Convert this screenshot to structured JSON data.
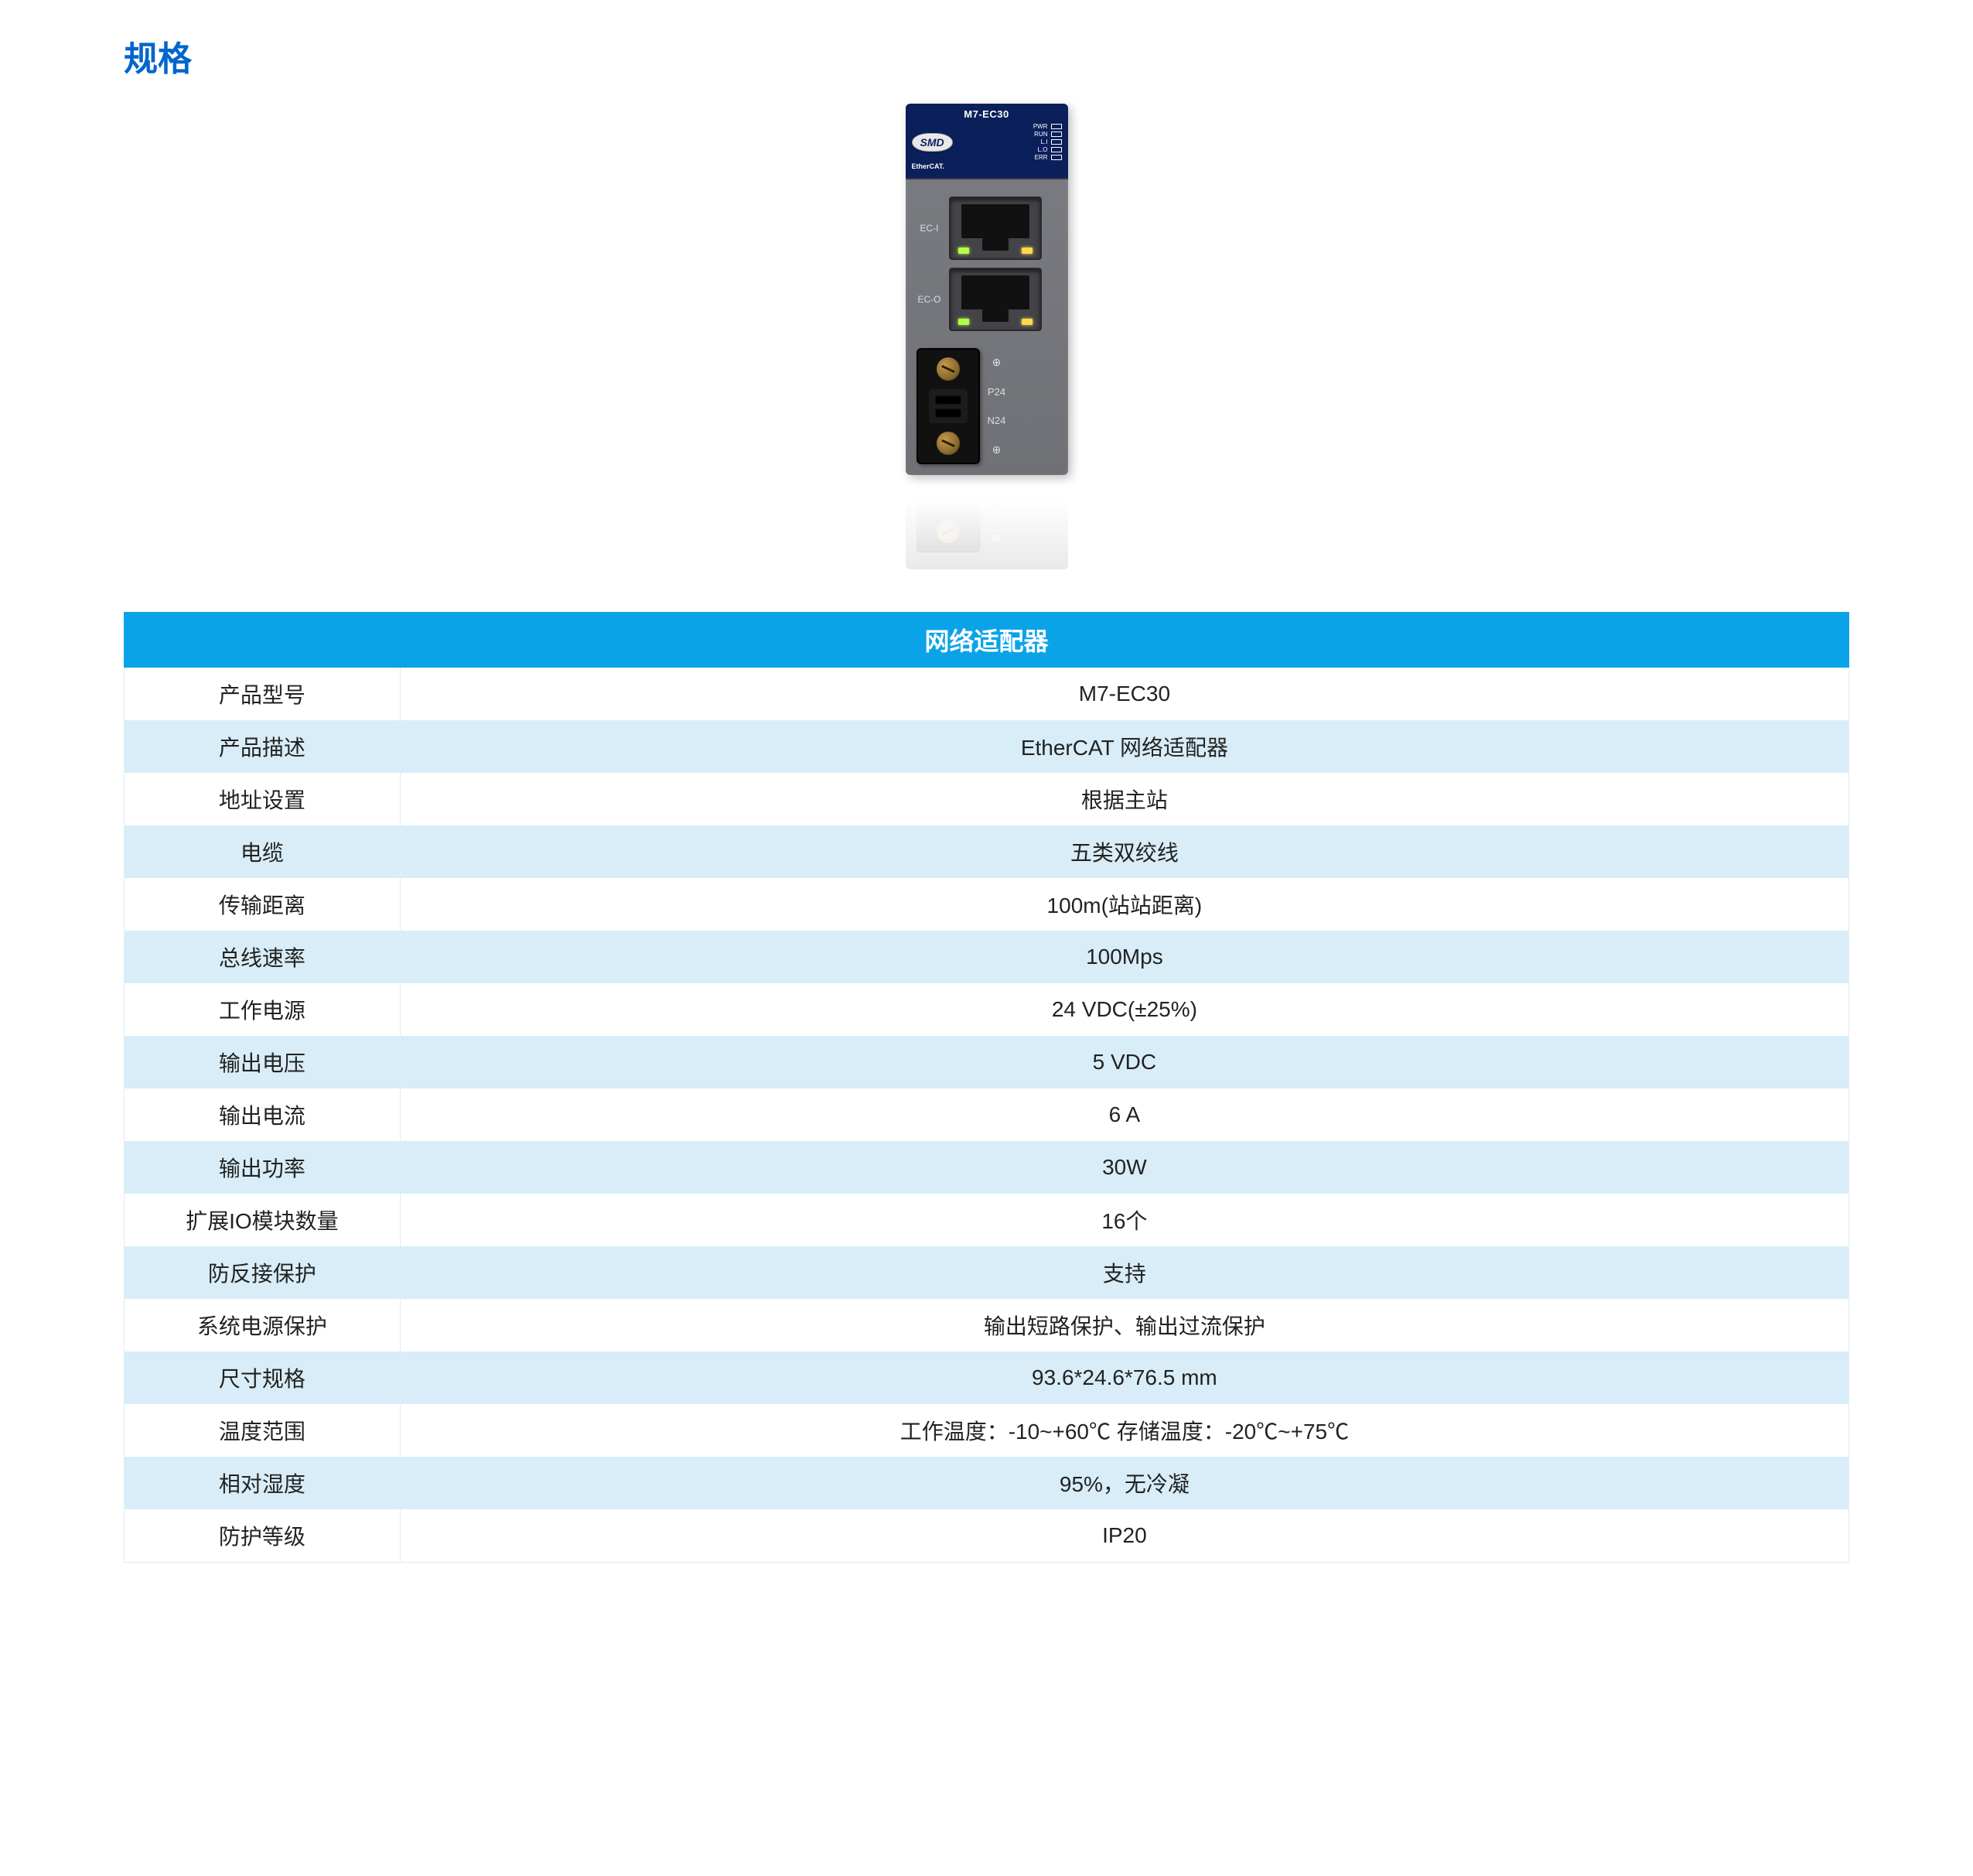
{
  "page": {
    "title": "规格"
  },
  "device": {
    "model_banner": "M7-EC30",
    "logo_text": "SMD",
    "ethercat_label": "EtherCAT.",
    "leds": [
      "PWR",
      "RUN",
      "L.I",
      "L.O",
      "ERR"
    ],
    "port_in_label": "EC-I",
    "port_out_label": "EC-O",
    "power_labels": {
      "top_sym": "⊕",
      "p24": "P24",
      "n24": "N24",
      "bot_sym": "⊕"
    },
    "body_color": "#76787d",
    "header_color": "#0b1f5a"
  },
  "spec_table": {
    "header": "网络适配器",
    "header_bg": "#0ba3e8",
    "header_fg": "#ffffff",
    "row_odd_bg": "#ffffff",
    "row_even_bg": "#d8edf7",
    "border_color": "#dbe9f1",
    "text_color": "#222222",
    "label_fontsize": 28,
    "header_fontsize": 32,
    "label_col_width_pct": 16,
    "rows": [
      {
        "label": "产品型号",
        "value": "M7-EC30"
      },
      {
        "label": "产品描述",
        "value": "EtherCAT 网络适配器"
      },
      {
        "label": "地址设置",
        "value": "根据主站"
      },
      {
        "label": "电缆",
        "value": "五类双绞线"
      },
      {
        "label": "传输距离",
        "value": "100m(站站距离)"
      },
      {
        "label": "总线速率",
        "value": "100Mps"
      },
      {
        "label": "工作电源",
        "value": "24 VDC(±25%)"
      },
      {
        "label": "输出电压",
        "value": "5 VDC"
      },
      {
        "label": "输出电流",
        "value": "6 A"
      },
      {
        "label": "输出功率",
        "value": "30W"
      },
      {
        "label": "扩展IO模块数量",
        "value": "16个"
      },
      {
        "label": "防反接保护",
        "value": "支持"
      },
      {
        "label": "系统电源保护",
        "value": "输出短路保护、输出过流保护"
      },
      {
        "label": "尺寸规格",
        "value": "93.6*24.6*76.5 mm"
      },
      {
        "label": "温度范围",
        "value": "工作温度：-10~+60℃  存储温度：-20℃~+75℃"
      },
      {
        "label": "相对湿度",
        "value": "95%，无冷凝"
      },
      {
        "label": "防护等级",
        "value": "IP20"
      }
    ]
  }
}
